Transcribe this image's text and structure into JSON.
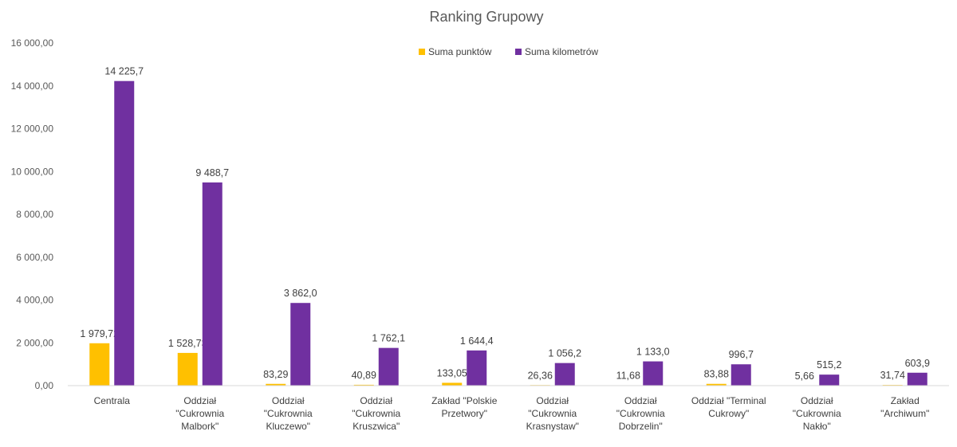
{
  "chart_data": {
    "type": "bar",
    "title": "Ranking Grupowy",
    "xlabel": "",
    "ylabel": "",
    "ylim": [
      0,
      16000
    ],
    "yticks": [
      0,
      2000,
      4000,
      6000,
      8000,
      10000,
      12000,
      14000,
      16000
    ],
    "ytick_labels": [
      "0,00",
      "2 000,00",
      "4 000,00",
      "6 000,00",
      "8 000,00",
      "10 000,00",
      "12 000,00",
      "14 000,00",
      "16 000,00"
    ],
    "grid": false,
    "legend_position": "top-center",
    "categories": [
      [
        "Centrala"
      ],
      [
        "Oddział",
        "\"Cukrownia",
        "Malbork\""
      ],
      [
        "Oddział",
        "\"Cukrownia",
        "Kluczewo\""
      ],
      [
        "Oddział",
        "\"Cukrownia",
        "Kruszwica\""
      ],
      [
        "Zakład \"Polskie",
        "Przetwory\""
      ],
      [
        "Oddział",
        "\"Cukrownia",
        "Krasnystaw\""
      ],
      [
        "Oddział",
        "\"Cukrownia",
        "Dobrzelin\""
      ],
      [
        "Oddział \"Terminal",
        "Cukrowy\""
      ],
      [
        "Oddział",
        "\"Cukrownia",
        "Nakło\""
      ],
      [
        "Zakład",
        "\"Archiwum\""
      ]
    ],
    "series": [
      {
        "name": "Suma punktów",
        "color": "#FFC000",
        "values": [
          1979.72,
          1528.73,
          83.29,
          40.89,
          133.05,
          26.36,
          11.68,
          83.88,
          5.66,
          31.74
        ],
        "labels": [
          "1 979,72",
          "1 528,73",
          "83,29",
          "40,89",
          "133,05",
          "26,36",
          "11,68",
          "83,88",
          "5,66",
          "31,74"
        ]
      },
      {
        "name": "Suma kilometrów",
        "color": "#7030A0",
        "values": [
          14225.7,
          9488.7,
          3862.0,
          1762.1,
          1644.4,
          1056.2,
          1133.0,
          996.7,
          515.2,
          603.9
        ],
        "labels": [
          "14 225,7",
          "9 488,7",
          "3 862,0",
          "1 762,1",
          "1 644,4",
          "1 056,2",
          "1 133,0",
          "996,7",
          "515,2",
          "603,9"
        ]
      }
    ]
  }
}
